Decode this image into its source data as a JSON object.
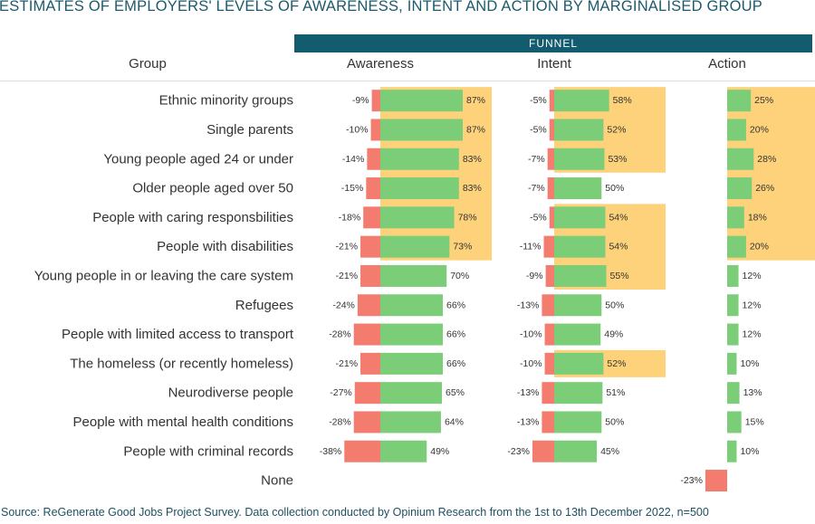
{
  "title": "ESTIMATES OF EMPLOYERS' LEVELS OF AWARENESS, INTENT AND ACTION BY MARGINALISED GROUP",
  "funnel_label": "FUNNEL",
  "headers": {
    "group": "Group",
    "awareness": "Awareness",
    "intent": "Intent",
    "action": "Action"
  },
  "source": "Source: ReGenerate Good Jobs Project Survey. Data collection conducted by Opinium Research from the 1st to 13th December 2022, n=500",
  "colors": {
    "negative": "#f47c6e",
    "positive": "#7ccd78",
    "highlight": "#fdd27a",
    "funnel": "#135b6e"
  },
  "chart_data": {
    "type": "bar",
    "orientation": "horizontal-diverging",
    "categories": [
      "Ethnic minority groups",
      "Single parents",
      "Young people aged 24 or under",
      "Older people aged over 50",
      "People with caring responsbilities",
      "People with disabilities",
      "Young people in or leaving the care system",
      "Refugees",
      "People with limited access to transport",
      "The homeless (or recently homeless)",
      "Neurodiverse people",
      "People with mental health conditions",
      "People with criminal records",
      "None"
    ],
    "series": [
      {
        "name": "Awareness",
        "negative": [
          -9,
          -10,
          -14,
          -15,
          -18,
          -21,
          -21,
          -24,
          -28,
          -21,
          -27,
          -28,
          -38,
          null
        ],
        "positive": [
          87,
          87,
          83,
          83,
          78,
          73,
          70,
          66,
          66,
          66,
          65,
          64,
          49,
          null
        ],
        "highlighted": [
          true,
          true,
          true,
          true,
          true,
          true,
          false,
          false,
          false,
          false,
          false,
          false,
          false,
          false
        ]
      },
      {
        "name": "Intent",
        "negative": [
          -5,
          -5,
          -7,
          -7,
          -5,
          -11,
          -9,
          -13,
          -10,
          -10,
          -13,
          -13,
          -23,
          null
        ],
        "positive": [
          58,
          52,
          53,
          50,
          54,
          54,
          55,
          50,
          49,
          52,
          51,
          50,
          45,
          null
        ],
        "highlighted": [
          true,
          true,
          true,
          false,
          true,
          true,
          true,
          false,
          false,
          true,
          false,
          false,
          false,
          false
        ]
      },
      {
        "name": "Action",
        "negative": [
          null,
          null,
          null,
          null,
          null,
          null,
          null,
          null,
          null,
          null,
          null,
          null,
          null,
          -23
        ],
        "positive": [
          25,
          20,
          28,
          26,
          18,
          20,
          12,
          12,
          12,
          10,
          13,
          15,
          10,
          null
        ],
        "highlighted": [
          true,
          true,
          true,
          true,
          true,
          true,
          false,
          false,
          false,
          false,
          false,
          false,
          false,
          false
        ]
      }
    ],
    "unit": "%",
    "xlabel": "",
    "ylabel": "Group"
  }
}
